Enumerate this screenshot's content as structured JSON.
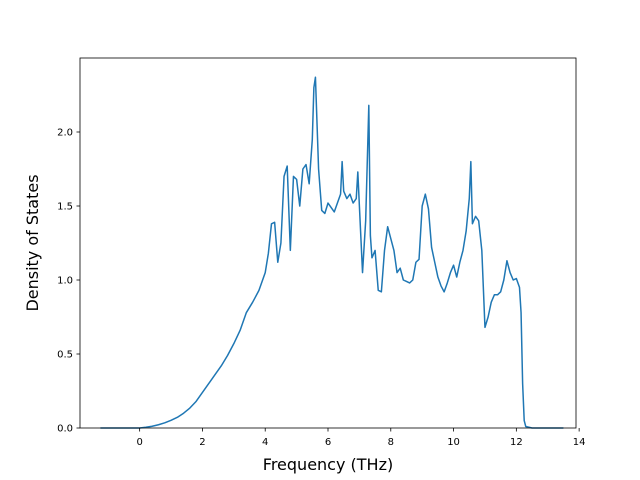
{
  "chart_data": {
    "type": "line",
    "title": "",
    "xlabel": "Frequency (THz)",
    "ylabel": "Density of States",
    "xlim": [
      -1.9,
      13.9
    ],
    "ylim": [
      0.0,
      2.5
    ],
    "xticks": [
      0,
      2,
      4,
      6,
      8,
      10,
      12,
      14
    ],
    "xtick_labels": [
      "0",
      "2",
      "4",
      "6",
      "8",
      "10",
      "12",
      "14"
    ],
    "yticks": [
      0.0,
      0.5,
      1.0,
      1.5,
      2.0
    ],
    "ytick_labels": [
      "0.0",
      "0.5",
      "1.0",
      "1.5",
      "2.0"
    ],
    "grid": false,
    "legend": "none",
    "line_color": "#1f77b4",
    "series": [
      {
        "x": [
          -1.25,
          -1.0,
          -0.5,
          0.0,
          0.2,
          0.4,
          0.6,
          0.8,
          1.0,
          1.2,
          1.4,
          1.6,
          1.8,
          2.0,
          2.2,
          2.4,
          2.6,
          2.8,
          3.0,
          3.2,
          3.4,
          3.6,
          3.8,
          4.0,
          4.1,
          4.2,
          4.3,
          4.4,
          4.5,
          4.6,
          4.7,
          4.8,
          4.9,
          5.0,
          5.1,
          5.2,
          5.3,
          5.4,
          5.5,
          5.55,
          5.6,
          5.7,
          5.8,
          5.9,
          6.0,
          6.2,
          6.4,
          6.45,
          6.5,
          6.6,
          6.7,
          6.8,
          6.9,
          6.95,
          7.0,
          7.1,
          7.2,
          7.3,
          7.35,
          7.4,
          7.5,
          7.6,
          7.7,
          7.8,
          7.9,
          8.0,
          8.1,
          8.2,
          8.3,
          8.4,
          8.5,
          8.6,
          8.7,
          8.8,
          8.9,
          9.0,
          9.1,
          9.2,
          9.3,
          9.4,
          9.5,
          9.6,
          9.7,
          9.8,
          9.9,
          10.0,
          10.1,
          10.2,
          10.3,
          10.4,
          10.5,
          10.55,
          10.6,
          10.7,
          10.8,
          10.9,
          11.0,
          11.1,
          11.2,
          11.3,
          11.4,
          11.5,
          11.6,
          11.7,
          11.8,
          11.9,
          12.0,
          12.1,
          12.15,
          12.2,
          12.25,
          12.3,
          12.5,
          13.0,
          13.5
        ],
        "y": [
          0.0,
          0.0,
          0.0,
          0.0,
          0.005,
          0.012,
          0.022,
          0.035,
          0.052,
          0.072,
          0.1,
          0.135,
          0.18,
          0.24,
          0.3,
          0.36,
          0.42,
          0.49,
          0.57,
          0.66,
          0.78,
          0.85,
          0.93,
          1.05,
          1.18,
          1.38,
          1.39,
          1.12,
          1.25,
          1.7,
          1.77,
          1.2,
          1.7,
          1.68,
          1.5,
          1.75,
          1.78,
          1.65,
          1.95,
          2.3,
          2.37,
          1.75,
          1.47,
          1.45,
          1.52,
          1.46,
          1.58,
          1.8,
          1.6,
          1.55,
          1.58,
          1.52,
          1.55,
          1.73,
          1.5,
          1.05,
          1.4,
          2.18,
          1.3,
          1.15,
          1.2,
          0.93,
          0.92,
          1.2,
          1.36,
          1.28,
          1.2,
          1.05,
          1.08,
          1.0,
          0.99,
          0.98,
          1.0,
          1.12,
          1.14,
          1.5,
          1.58,
          1.48,
          1.22,
          1.12,
          1.02,
          0.96,
          0.92,
          0.98,
          1.05,
          1.1,
          1.02,
          1.12,
          1.2,
          1.33,
          1.55,
          1.8,
          1.38,
          1.43,
          1.4,
          1.2,
          0.68,
          0.75,
          0.85,
          0.9,
          0.9,
          0.92,
          1.0,
          1.13,
          1.05,
          1.0,
          1.01,
          0.95,
          0.78,
          0.3,
          0.05,
          0.01,
          0.0,
          0.0,
          0.0
        ]
      }
    ]
  }
}
